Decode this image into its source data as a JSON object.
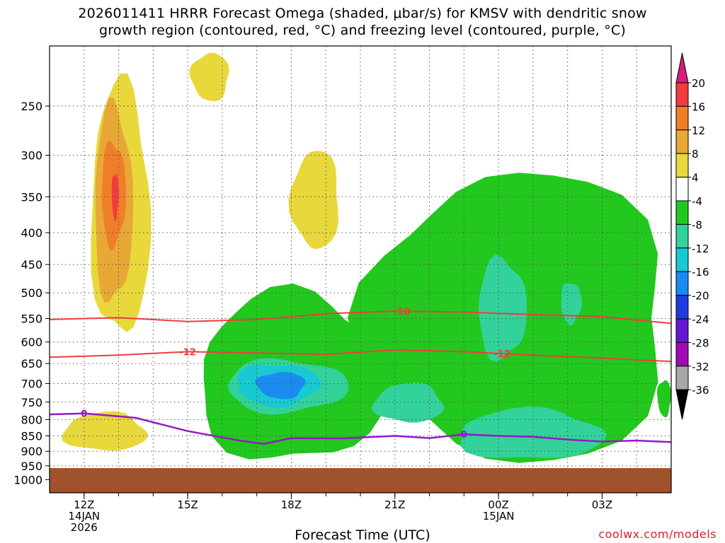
{
  "title": {
    "line1": "2026011411 HRRR Forecast Omega (shaded, μbar/s) for KMSV with dendritic snow",
    "line2": "growth region (contoured, red, °C) and freezing level (contoured, purple, °C)"
  },
  "credit": "coolwx.com/models",
  "chart_data": {
    "type": "heatmap",
    "title": "2026011411 HRRR Forecast Omega (shaded, μbar/s) for KMSV with dendritic snow growth region (contoured, red, °C) and freezing level (contoured, purple, °C)",
    "xlabel": "Forecast Time (UTC)",
    "ylabel": "",
    "x_ticks": [
      {
        "label": "12Z",
        "sub": [
          "14JAN",
          "2026"
        ],
        "hour": 12
      },
      {
        "label": "15Z",
        "sub": [],
        "hour": 15
      },
      {
        "label": "18Z",
        "sub": [],
        "hour": 18
      },
      {
        "label": "21Z",
        "sub": [],
        "hour": 21
      },
      {
        "label": "00Z",
        "sub": [
          "15JAN"
        ],
        "hour": 24
      },
      {
        "label": "03Z",
        "sub": [],
        "hour": 27
      }
    ],
    "xlim_hours": [
      11,
      29
    ],
    "y_ticks": [
      250,
      300,
      350,
      400,
      450,
      500,
      550,
      600,
      650,
      700,
      750,
      800,
      850,
      900,
      950,
      1000
    ],
    "ylim_hPa": [
      200,
      1050
    ],
    "y_scale": "log-pressure",
    "grid": true,
    "colorbar": {
      "levels": [
        20,
        16,
        12,
        8,
        4,
        -4,
        -8,
        -12,
        -16,
        -20,
        -24,
        -28,
        -32,
        -36
      ],
      "colors": [
        "#d81b7d",
        "#f03c3c",
        "#f07e28",
        "#e8a836",
        "#e8d83c",
        "#ffffff",
        "#22c81e",
        "#32d29a",
        "#18c8d2",
        "#1a8cf0",
        "#1e3cdc",
        "#6418d2",
        "#a00ab4",
        "#a8a8a8",
        "#000000"
      ]
    },
    "omega_regions": [
      {
        "level": 4,
        "x0": 12.2,
        "x1": 13.9,
        "p0": 230,
        "p1": 590,
        "color": "#e8d83c"
      },
      {
        "level": 8,
        "x0": 12.3,
        "x1": 13.4,
        "p0": 250,
        "p1": 520,
        "color": "#e8a836"
      },
      {
        "level": 12,
        "x0": 12.5,
        "x1": 13.2,
        "p0": 285,
        "p1": 420,
        "color": "#f07e28"
      },
      {
        "level": 16,
        "x0": 12.8,
        "x1": 13.0,
        "p0": 320,
        "p1": 380,
        "color": "#f03c3c"
      },
      {
        "level": 4,
        "x0": 15.1,
        "x1": 16.2,
        "p0": 205,
        "p1": 245,
        "color": "#e8d83c"
      },
      {
        "level": 4,
        "x0": 18.0,
        "x1": 19.4,
        "p0": 295,
        "p1": 425,
        "color": "#e8d83c"
      },
      {
        "level": 4,
        "x0": 11.4,
        "x1": 13.8,
        "p0": 780,
        "p1": 900,
        "color": "#e8d83c"
      },
      {
        "level": -4,
        "x0": 15.3,
        "x1": 20.8,
        "p0": 500,
        "p1": 940,
        "color": "#22c81e"
      },
      {
        "level": -8,
        "x0": 16.1,
        "x1": 19.6,
        "p0": 640,
        "p1": 780,
        "color": "#32d29a"
      },
      {
        "level": -12,
        "x0": 16.4,
        "x1": 18.8,
        "p0": 650,
        "p1": 760,
        "color": "#18c8d2"
      },
      {
        "level": -16,
        "x0": 17.0,
        "x1": 18.4,
        "p0": 670,
        "p1": 740,
        "color": "#1a8cf0"
      },
      {
        "level": -4,
        "x0": 20.2,
        "x1": 29.0,
        "p0": 320,
        "p1": 940,
        "color": "#22c81e"
      },
      {
        "level": -8,
        "x0": 20.4,
        "x1": 22.4,
        "p0": 700,
        "p1": 810,
        "color": "#32d29a"
      },
      {
        "level": -8,
        "x0": 22.8,
        "x1": 27.0,
        "p0": 770,
        "p1": 930,
        "color": "#32d29a"
      },
      {
        "level": -8,
        "x0": 23.4,
        "x1": 24.8,
        "p0": 440,
        "p1": 640,
        "color": "#32d29a"
      },
      {
        "level": -8,
        "x0": 25.8,
        "x1": 26.4,
        "p0": 480,
        "p1": 560,
        "color": "#32d29a"
      },
      {
        "level": -4,
        "x0": 28.6,
        "x1": 29.0,
        "p0": 690,
        "p1": 790,
        "color": "#22c81e"
      }
    ],
    "dgz_contours": [
      {
        "label": "-18",
        "hours": [
          11,
          13,
          15,
          17,
          19,
          21,
          23,
          25,
          27,
          29
        ],
        "pressure": [
          552,
          548,
          556,
          552,
          540,
          535,
          537,
          542,
          546,
          560
        ]
      },
      {
        "label": "-12",
        "hours": [
          11,
          13,
          15,
          17,
          19,
          21,
          23,
          25,
          27,
          29
        ],
        "pressure": [
          635,
          630,
          622,
          625,
          628,
          618,
          622,
          630,
          637,
          645
        ]
      }
    ],
    "freezing_level": {
      "label": "0",
      "hours": [
        11,
        12,
        13.5,
        15,
        16.5,
        17.2,
        18,
        19.5,
        21,
        22,
        23,
        24,
        25,
        26,
        27,
        28,
        29
      ],
      "pressure": [
        785,
        782,
        795,
        835,
        865,
        876,
        857,
        858,
        850,
        857,
        845,
        850,
        853,
        862,
        868,
        865,
        870
      ]
    },
    "ground": {
      "label": "terrain",
      "pressure_top": 958
    }
  }
}
